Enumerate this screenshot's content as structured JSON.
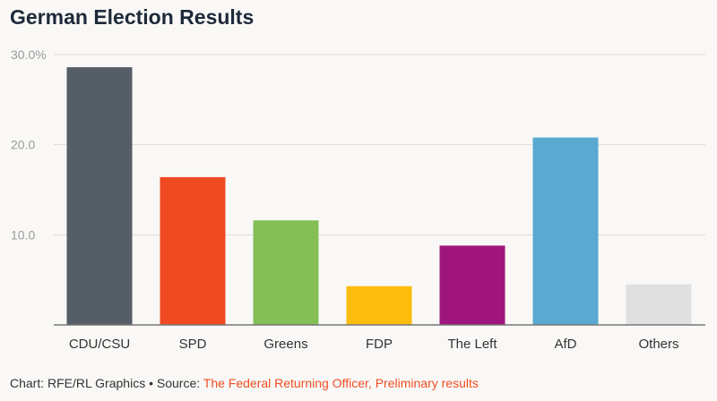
{
  "title": "German Election Results",
  "footer": {
    "credit": "Chart: RFE/RL Graphics • Source: ",
    "source": "The Federal Returning Officer, Preliminary results"
  },
  "chart_data": {
    "type": "bar",
    "title": "German Election Results",
    "xlabel": "",
    "ylabel": "",
    "ylim": [
      0,
      30
    ],
    "yticks": [
      {
        "value": 30,
        "label": "30.0%"
      },
      {
        "value": 20,
        "label": "20.0"
      },
      {
        "value": 10,
        "label": "10.0"
      }
    ],
    "grid": true,
    "categories": [
      "CDU/CSU",
      "SPD",
      "Greens",
      "FDP",
      "The Left",
      "AfD",
      "Others"
    ],
    "values": [
      28.6,
      16.4,
      11.6,
      4.3,
      8.8,
      20.8,
      4.5
    ],
    "colors": [
      "#555d66",
      "#f04a22",
      "#84bf56",
      "#fbbc0c",
      "#a0157d",
      "#59a9d1",
      "#e0e0e0"
    ]
  }
}
